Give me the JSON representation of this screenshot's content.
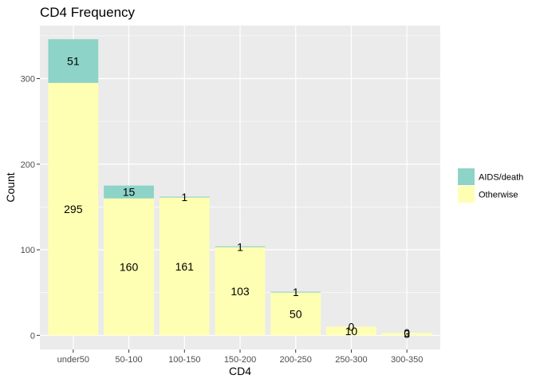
{
  "chart_data": {
    "type": "bar",
    "stacked": true,
    "title": "CD4 Frequency",
    "xlabel": "CD4",
    "ylabel": "Count",
    "categories": [
      "under50",
      "50-100",
      "100-150",
      "150-200",
      "200-250",
      "250-300",
      "300-350"
    ],
    "series": [
      {
        "name": "Otherwise",
        "color": "#ffffb3",
        "values": [
          295,
          160,
          161,
          103,
          50,
          10,
          3
        ]
      },
      {
        "name": "AIDS/death",
        "color": "#8dd3c7",
        "values": [
          51,
          15,
          1,
          1,
          1,
          0,
          0
        ]
      }
    ],
    "legend_order": [
      "AIDS/death",
      "Otherwise"
    ],
    "ylim": [
      -16.5,
      362
    ],
    "yticks": [
      0,
      100,
      200,
      300
    ],
    "grid": true,
    "legend_position": "right",
    "panel_background": "#ebebeb",
    "grid_color": "#ffffff"
  }
}
